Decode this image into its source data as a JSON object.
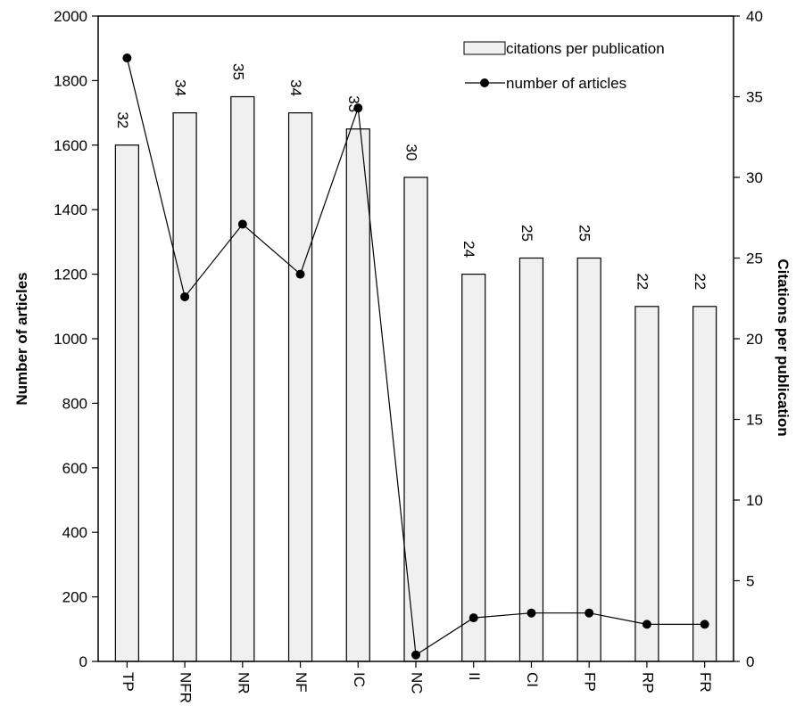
{
  "chart_data": {
    "type": "bar",
    "title": "",
    "categories": [
      "TP",
      "NFR",
      "NR",
      "NF",
      "IC",
      "NC",
      "II",
      "CI",
      "FP",
      "RP",
      "FR"
    ],
    "series": [
      {
        "name": "citations per publication",
        "type": "bar",
        "axis": "right",
        "values": [
          32,
          34,
          35,
          34,
          33,
          30,
          24,
          25,
          25,
          22,
          22
        ],
        "labels": [
          "32",
          "34",
          "35",
          "34",
          "33",
          "30",
          "24",
          "25",
          "25",
          "22",
          "22"
        ],
        "color": "#f0f0f0"
      },
      {
        "name": "number of articles",
        "type": "line",
        "axis": "left",
        "values": [
          1870,
          1130,
          1355,
          1200,
          1715,
          20,
          135,
          150,
          150,
          115,
          115
        ],
        "color": "#000000"
      }
    ],
    "ylabel": "Number of articles",
    "ylim": [
      0,
      2000
    ],
    "yticks": [
      0,
      200,
      400,
      600,
      800,
      1000,
      1200,
      1400,
      1600,
      1800,
      2000
    ],
    "y2label": "Citations per publication",
    "y2lim": [
      0,
      40
    ],
    "y2ticks": [
      0,
      5,
      10,
      15,
      20,
      25,
      30,
      35,
      40
    ],
    "grid": false,
    "legend": "top-right"
  }
}
